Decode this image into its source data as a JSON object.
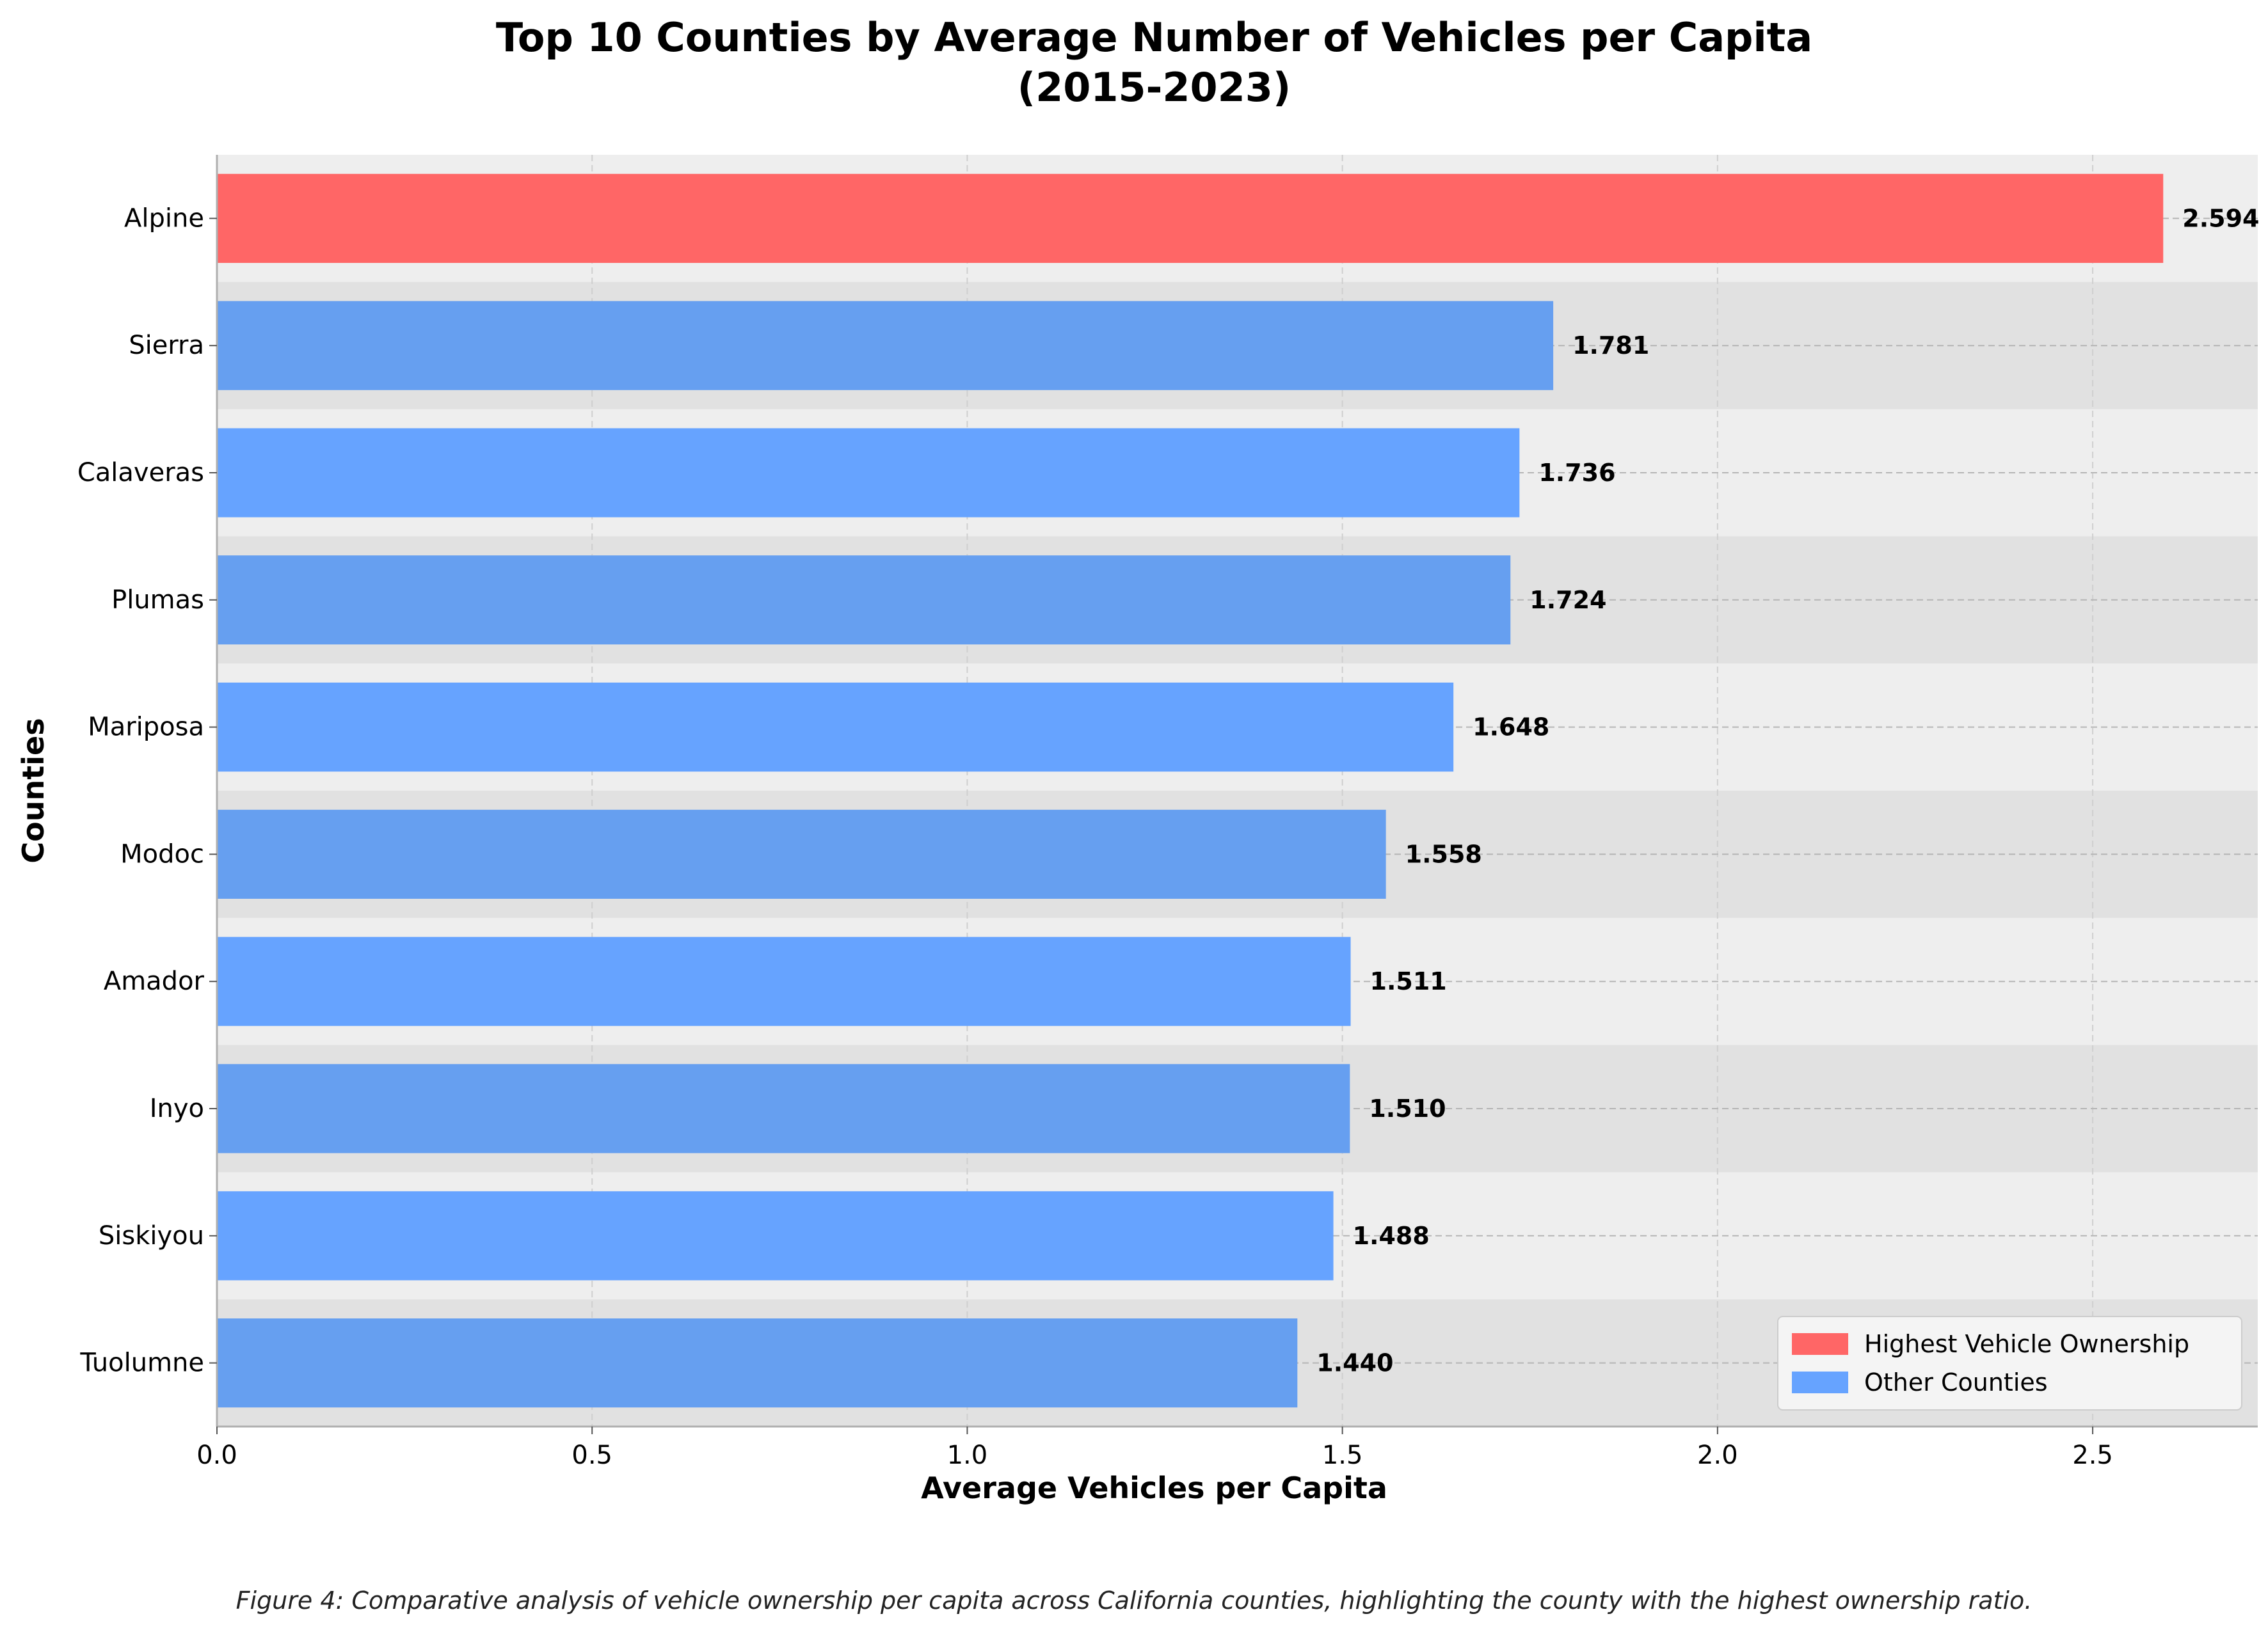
{
  "chart_data": {
    "type": "bar",
    "orientation": "horizontal",
    "title": "Top 10 Counties by Average Number of Vehicles per Capita\n(2015-2023)",
    "xlabel": "Average Vehicles per Capita",
    "ylabel": "Counties",
    "categories": [
      "Alpine",
      "Sierra",
      "Calaveras",
      "Plumas",
      "Mariposa",
      "Modoc",
      "Amador",
      "Inyo",
      "Siskiyou",
      "Tuolumne"
    ],
    "values": [
      2.594,
      1.781,
      1.736,
      1.724,
      1.648,
      1.558,
      1.511,
      1.51,
      1.488,
      1.44
    ],
    "value_labels": [
      "2.594",
      "1.781",
      "1.736",
      "1.724",
      "1.648",
      "1.558",
      "1.511",
      "1.510",
      "1.488",
      "1.440"
    ],
    "highlight_index": 0,
    "xlim": [
      0,
      2.72
    ],
    "xticks": [
      0.0,
      0.5,
      1.0,
      1.5,
      2.0,
      2.5
    ],
    "xtick_labels": [
      "0.0",
      "0.5",
      "1.0",
      "1.5",
      "2.0",
      "2.5"
    ],
    "grid": true,
    "legend_position": "bottom-right",
    "legend": [
      {
        "label": "Highest Vehicle Ownership",
        "color": "#ff6666"
      },
      {
        "label": "Other Counties",
        "color": "#66a3ff"
      }
    ],
    "colors": {
      "highlight": "#ff6666",
      "other": "#66a3ff",
      "other_banded": "#669ff0",
      "plot_background": "#eeeeee",
      "band": "#e1e1e1"
    }
  },
  "caption": "Figure 4: Comparative analysis of vehicle ownership per capita across California counties, highlighting the county with the highest ownership ratio."
}
